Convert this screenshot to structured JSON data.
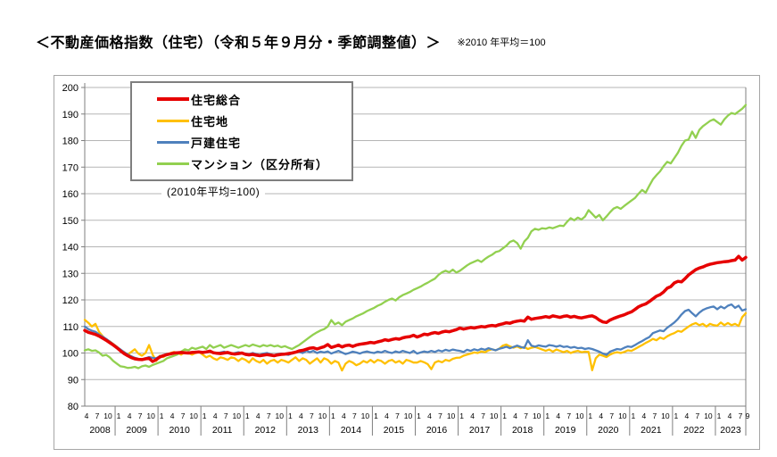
{
  "header": {
    "title": "＜不動産価格指数（住宅）（令和５年９月分・季節調整値）＞",
    "note": "※2010 年平均＝100"
  },
  "chart_data": {
    "type": "line",
    "title": "不動産価格指数（住宅）",
    "subtitle": "(2010年平均=100)",
    "x_start": "2008-04",
    "x_end": "2023-09",
    "n_points": 186,
    "ylim": [
      80,
      200
    ],
    "y_ticks": [
      80,
      90,
      100,
      110,
      120,
      130,
      140,
      150,
      160,
      170,
      180,
      190,
      200
    ],
    "grid": "horizontal",
    "legend_position": "top-left-inside",
    "x_axis": {
      "years": [
        {
          "label": "2008",
          "months": [
            "4",
            "7",
            "10"
          ]
        },
        {
          "label": "2009",
          "months": [
            "1",
            "4",
            "7",
            "10"
          ]
        },
        {
          "label": "2010",
          "months": [
            "1",
            "4",
            "7",
            "10"
          ]
        },
        {
          "label": "2011",
          "months": [
            "1",
            "4",
            "7",
            "10"
          ]
        },
        {
          "label": "2012",
          "months": [
            "1",
            "4",
            "7",
            "10"
          ]
        },
        {
          "label": "2013",
          "months": [
            "1",
            "4",
            "7",
            "10"
          ]
        },
        {
          "label": "2014",
          "months": [
            "1",
            "4",
            "7",
            "10"
          ]
        },
        {
          "label": "2015",
          "months": [
            "1",
            "4",
            "7",
            "10"
          ]
        },
        {
          "label": "2016",
          "months": [
            "1",
            "4",
            "7",
            "10"
          ]
        },
        {
          "label": "2017",
          "months": [
            "1",
            "4",
            "7",
            "10"
          ]
        },
        {
          "label": "2018",
          "months": [
            "1",
            "4",
            "7",
            "10"
          ]
        },
        {
          "label": "2019",
          "months": [
            "1",
            "4",
            "7",
            "10"
          ]
        },
        {
          "label": "2020",
          "months": [
            "1",
            "4",
            "7",
            "10"
          ]
        },
        {
          "label": "2021",
          "months": [
            "1",
            "4",
            "7",
            "10"
          ]
        },
        {
          "label": "2022",
          "months": [
            "1",
            "4",
            "7",
            "10"
          ]
        },
        {
          "label": "2023",
          "months": [
            "1",
            "4",
            "7",
            "9"
          ]
        }
      ]
    },
    "series": [
      {
        "id": "residential-total",
        "label": "住宅総合",
        "color": "#e60000",
        "width": 3.5,
        "values": [
          108.5,
          107.8,
          107.4,
          107.0,
          106.4,
          105.6,
          104.8,
          103.9,
          103.0,
          102.0,
          100.8,
          99.8,
          99.0,
          98.3,
          97.8,
          97.6,
          97.5,
          97.8,
          98.0,
          96.8,
          97.5,
          98.5,
          99.0,
          99.4,
          99.7,
          100.0,
          100.1,
          100.2,
          100.1,
          100.0,
          100.2,
          100.3,
          100.4,
          100.2,
          100.4,
          100.7,
          100.1,
          99.9,
          99.8,
          100.0,
          100.2,
          99.8,
          99.6,
          99.8,
          100.0,
          99.5,
          99.3,
          99.5,
          99.2,
          99.0,
          99.2,
          99.4,
          99.2,
          99.0,
          99.3,
          99.5,
          99.6,
          99.8,
          100.0,
          100.3,
          100.8,
          101.0,
          101.4,
          101.8,
          102.0,
          101.5,
          102.0,
          102.4,
          103.2,
          102.1,
          102.5,
          103.0,
          102.3,
          102.8,
          103.0,
          102.5,
          103.0,
          103.3,
          103.5,
          103.7,
          104.0,
          103.8,
          104.2,
          104.5,
          105.0,
          104.7,
          105.1,
          105.4,
          105.2,
          105.7,
          106.0,
          106.2,
          106.7,
          106.0,
          106.5,
          107.1,
          106.9,
          107.4,
          107.7,
          107.4,
          107.9,
          108.2,
          108.0,
          108.4,
          108.8,
          109.4,
          109.0,
          109.3,
          109.6,
          109.4,
          109.7,
          110.0,
          109.8,
          110.2,
          110.4,
          110.2,
          110.7,
          111.0,
          111.4,
          111.2,
          111.7,
          112.0,
          112.2,
          112.0,
          113.5,
          112.7,
          113.0,
          113.2,
          113.4,
          113.7,
          113.4,
          114.0,
          113.7,
          113.4,
          113.8,
          114.0,
          113.5,
          113.8,
          113.4,
          113.2,
          113.5,
          113.8,
          114.0,
          113.4,
          112.4,
          111.7,
          111.5,
          112.4,
          113.0,
          113.5,
          114.0,
          114.4,
          115.0,
          115.5,
          116.4,
          117.4,
          118.0,
          118.5,
          119.4,
          120.4,
          121.4,
          122.0,
          123.0,
          124.4,
          125.0,
          126.4,
          127.0,
          126.8,
          128.0,
          129.4,
          130.4,
          131.4,
          132.0,
          132.4,
          133.0,
          133.4,
          133.7,
          134.0,
          134.2,
          134.4,
          134.5,
          134.8,
          135.0,
          136.4,
          135.0,
          136.0
        ]
      },
      {
        "id": "residential-land",
        "label": "住宅地",
        "color": "#ffc000",
        "width": 2.3,
        "values": [
          112.5,
          111.4,
          110.0,
          111.0,
          108.0,
          106.4,
          105.0,
          104.4,
          103.4,
          102.4,
          101.0,
          100.4,
          99.4,
          100.4,
          101.4,
          99.8,
          99.0,
          100.0,
          103.0,
          99.4,
          97.0,
          99.0,
          98.5,
          99.4,
          100.0,
          100.4,
          100.0,
          99.4,
          100.4,
          100.0,
          99.4,
          100.0,
          100.4,
          99.4,
          98.4,
          99.0,
          98.0,
          97.4,
          98.4,
          98.0,
          97.4,
          98.4,
          98.0,
          97.0,
          98.0,
          97.4,
          96.4,
          98.0,
          97.0,
          96.4,
          97.4,
          96.0,
          97.0,
          97.4,
          96.4,
          97.4,
          97.0,
          96.4,
          97.4,
          98.4,
          97.0,
          98.0,
          97.4,
          96.0,
          97.0,
          98.0,
          96.4,
          98.0,
          97.4,
          96.0,
          97.0,
          96.4,
          93.4,
          96.0,
          97.0,
          96.4,
          95.4,
          96.0,
          97.0,
          96.4,
          97.4,
          96.4,
          97.4,
          97.0,
          96.0,
          97.0,
          97.4,
          96.4,
          97.0,
          96.0,
          97.4,
          97.0,
          96.4,
          96.4,
          97.0,
          96.5,
          95.8,
          93.9,
          96.4,
          97.0,
          96.5,
          97.4,
          97.0,
          97.8,
          98.2,
          98.3,
          99.0,
          99.4,
          99.8,
          100.2,
          100.0,
          100.6,
          100.3,
          101.0,
          101.4,
          101.0,
          101.6,
          102.8,
          103.2,
          102.5,
          102.0,
          102.5,
          101.8,
          102.3,
          101.5,
          102.0,
          102.3,
          101.8,
          101.3,
          100.8,
          101.3,
          100.5,
          101.3,
          100.8,
          100.3,
          100.8,
          100.0,
          100.5,
          100.8,
          100.3,
          100.5,
          100.4,
          93.5,
          98.0,
          99.4,
          99.0,
          98.5,
          99.4,
          100.0,
          100.3,
          100.0,
          100.4,
          101.0,
          100.8,
          101.5,
          102.3,
          103.0,
          103.8,
          104.5,
          105.3,
          104.8,
          105.8,
          105.3,
          106.3,
          107.0,
          107.5,
          108.3,
          108.0,
          109.0,
          110.0,
          110.8,
          111.3,
          110.5,
          111.0,
          110.0,
          111.0,
          110.5,
          110.3,
          111.5,
          110.5,
          111.3,
          110.5,
          111.0,
          110.2,
          113.5,
          115.0
        ]
      },
      {
        "id": "detached-house",
        "label": "戸建住宅",
        "color": "#4f81bd",
        "width": 2.3,
        "values": [
          110.0,
          109.0,
          108.4,
          108.0,
          107.0,
          106.2,
          105.3,
          104.3,
          103.3,
          102.3,
          101.3,
          100.3,
          99.5,
          98.8,
          98.2,
          97.8,
          97.6,
          98.0,
          98.5,
          98.2,
          98.0,
          98.8,
          99.2,
          99.6,
          99.8,
          100.0,
          100.2,
          100.0,
          100.3,
          100.0,
          100.2,
          100.4,
          100.3,
          100.0,
          100.5,
          100.8,
          100.0,
          99.8,
          100.2,
          100.5,
          100.0,
          99.6,
          100.0,
          100.3,
          100.0,
          99.8,
          99.5,
          100.0,
          99.6,
          99.3,
          99.8,
          100.0,
          99.5,
          99.2,
          99.6,
          99.8,
          99.5,
          99.3,
          99.8,
          100.2,
          100.5,
          100.0,
          100.8,
          100.3,
          100.8,
          100.0,
          100.5,
          100.2,
          100.6,
          99.8,
          100.3,
          100.8,
          100.2,
          99.6,
          100.0,
          100.5,
          100.2,
          99.8,
          100.3,
          100.6,
          100.2,
          100.0,
          100.5,
          100.2,
          100.8,
          100.3,
          100.0,
          100.6,
          100.2,
          100.8,
          100.4,
          100.0,
          100.8,
          99.8,
          100.2,
          100.6,
          100.3,
          100.8,
          100.4,
          101.0,
          100.6,
          101.2,
          100.8,
          101.3,
          101.0,
          100.8,
          100.4,
          101.2,
          100.8,
          101.4,
          101.0,
          101.6,
          101.2,
          101.8,
          101.4,
          101.0,
          101.6,
          101.9,
          102.4,
          101.8,
          102.3,
          102.8,
          102.3,
          101.9,
          104.8,
          102.8,
          102.4,
          102.9,
          102.6,
          102.4,
          103.0,
          102.8,
          102.4,
          102.8,
          102.3,
          102.5,
          102.0,
          102.3,
          101.8,
          102.0,
          101.5,
          101.8,
          101.5,
          101.0,
          100.5,
          99.8,
          99.3,
          100.5,
          101.0,
          101.5,
          101.3,
          102.0,
          102.5,
          102.3,
          103.0,
          103.8,
          104.5,
          105.3,
          106.0,
          107.5,
          108.0,
          108.5,
          108.2,
          109.5,
          110.5,
          111.5,
          112.8,
          114.5,
          115.8,
          116.3,
          115.0,
          113.8,
          115.2,
          116.2,
          116.8,
          117.2,
          117.5,
          116.5,
          117.5,
          116.8,
          117.8,
          118.3,
          117.0,
          117.8,
          116.0,
          116.5
        ]
      },
      {
        "id": "condominium",
        "label": "マンション（区分所有）",
        "color": "#92d050",
        "width": 2.3,
        "values": [
          101.0,
          101.4,
          100.8,
          101.0,
          100.2,
          99.0,
          99.3,
          98.4,
          97.0,
          96.0,
          95.0,
          94.8,
          94.4,
          94.5,
          94.8,
          94.3,
          95.0,
          95.3,
          94.8,
          95.5,
          96.0,
          96.5,
          97.0,
          98.0,
          98.5,
          99.0,
          99.5,
          100.5,
          101.4,
          101.0,
          102.0,
          101.5,
          102.0,
          102.4,
          101.5,
          103.0,
          102.0,
          102.5,
          103.0,
          102.0,
          102.5,
          103.0,
          102.5,
          102.0,
          102.5,
          103.0,
          102.5,
          103.2,
          102.8,
          102.4,
          103.0,
          102.6,
          103.0,
          102.5,
          102.8,
          102.2,
          102.6,
          102.0,
          101.5,
          102.3,
          103.0,
          104.0,
          105.0,
          106.0,
          107.0,
          107.8,
          108.5,
          109.0,
          110.0,
          112.4,
          110.8,
          111.5,
          110.5,
          111.8,
          112.4,
          113.0,
          113.8,
          114.4,
          115.0,
          115.8,
          116.4,
          117.0,
          117.8,
          118.4,
          119.3,
          120.0,
          120.5,
          119.8,
          121.0,
          121.8,
          122.4,
          123.0,
          123.8,
          124.4,
          125.0,
          125.8,
          126.5,
          127.3,
          128.0,
          129.4,
          130.4,
          131.0,
          130.4,
          131.4,
          130.3,
          131.0,
          132.0,
          133.0,
          133.8,
          134.4,
          135.0,
          134.3,
          135.4,
          136.3,
          137.0,
          138.0,
          138.4,
          139.4,
          140.4,
          141.8,
          142.4,
          141.4,
          139.3,
          142.0,
          143.4,
          145.8,
          146.8,
          146.4,
          147.0,
          146.8,
          147.3,
          147.0,
          147.5,
          148.0,
          147.8,
          149.4,
          150.8,
          150.0,
          151.0,
          150.3,
          151.4,
          153.8,
          152.4,
          151.0,
          152.0,
          150.0,
          151.4,
          153.0,
          154.4,
          155.0,
          154.3,
          155.4,
          156.4,
          157.4,
          158.4,
          160.0,
          161.4,
          160.4,
          163.0,
          165.4,
          167.0,
          168.4,
          170.4,
          172.0,
          171.4,
          173.4,
          175.4,
          178.0,
          180.0,
          180.4,
          183.4,
          181.0,
          184.0,
          185.4,
          186.4,
          187.4,
          188.0,
          187.0,
          186.0,
          188.0,
          189.4,
          190.4,
          190.0,
          191.0,
          192.0,
          193.4
        ]
      }
    ]
  }
}
